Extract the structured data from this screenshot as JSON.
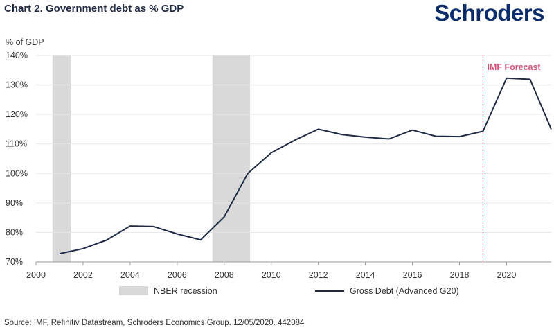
{
  "header": {
    "title": "Chart 2. Government debt as % GDP",
    "logo": "Schroders"
  },
  "footer": {
    "source": "Source: IMF, Refinitiv Datastream, Schroders Economics Group. 12/05/2020. 442084"
  },
  "chart_data": {
    "type": "line",
    "ylabel": "% of GDP",
    "xlim": [
      2000,
      2021.9
    ],
    "ylim": [
      70,
      140
    ],
    "x_ticks": [
      2000,
      2002,
      2004,
      2006,
      2008,
      2010,
      2012,
      2014,
      2016,
      2018,
      2020
    ],
    "y_ticks": [
      {
        "value": 70,
        "label": "70%"
      },
      {
        "value": 80,
        "label": "80%"
      },
      {
        "value": 90,
        "label": "90%"
      },
      {
        "value": 100,
        "label": "100%"
      },
      {
        "value": 110,
        "label": "110%"
      },
      {
        "value": 120,
        "label": "120%"
      },
      {
        "value": 130,
        "label": "130%"
      },
      {
        "value": 140,
        "label": "140%"
      }
    ],
    "grid": true,
    "recessions": [
      {
        "start": 2000.7,
        "end": 2001.5
      },
      {
        "start": 2007.5,
        "end": 2009.1
      }
    ],
    "forecast": {
      "x": 2019,
      "label": "IMF Forecast",
      "color": "#d6547a"
    },
    "series": [
      {
        "name": "Gross Debt (Advanced G20)",
        "color": "#1f2a44",
        "x": [
          2001,
          2002,
          2003,
          2004,
          2005,
          2006,
          2007,
          2008,
          2009,
          2010,
          2011,
          2012,
          2013,
          2014,
          2015,
          2016,
          2017,
          2018,
          2019,
          2020,
          2021,
          2021.9
        ],
        "values": [
          72.8,
          74.5,
          77.4,
          82.2,
          82.0,
          79.5,
          77.5,
          85.3,
          100.0,
          107.0,
          111.3,
          115.0,
          113.2,
          112.3,
          111.7,
          114.7,
          112.6,
          112.5,
          114.3,
          132.3,
          131.9,
          115.0
        ]
      }
    ],
    "legend": [
      {
        "type": "patch",
        "label": "NBER recession",
        "color": "#d9d9d9"
      },
      {
        "type": "line",
        "label": "Gross Debt (Advanced G20)",
        "color": "#1f2a44"
      }
    ],
    "legend_position": "bottom"
  }
}
